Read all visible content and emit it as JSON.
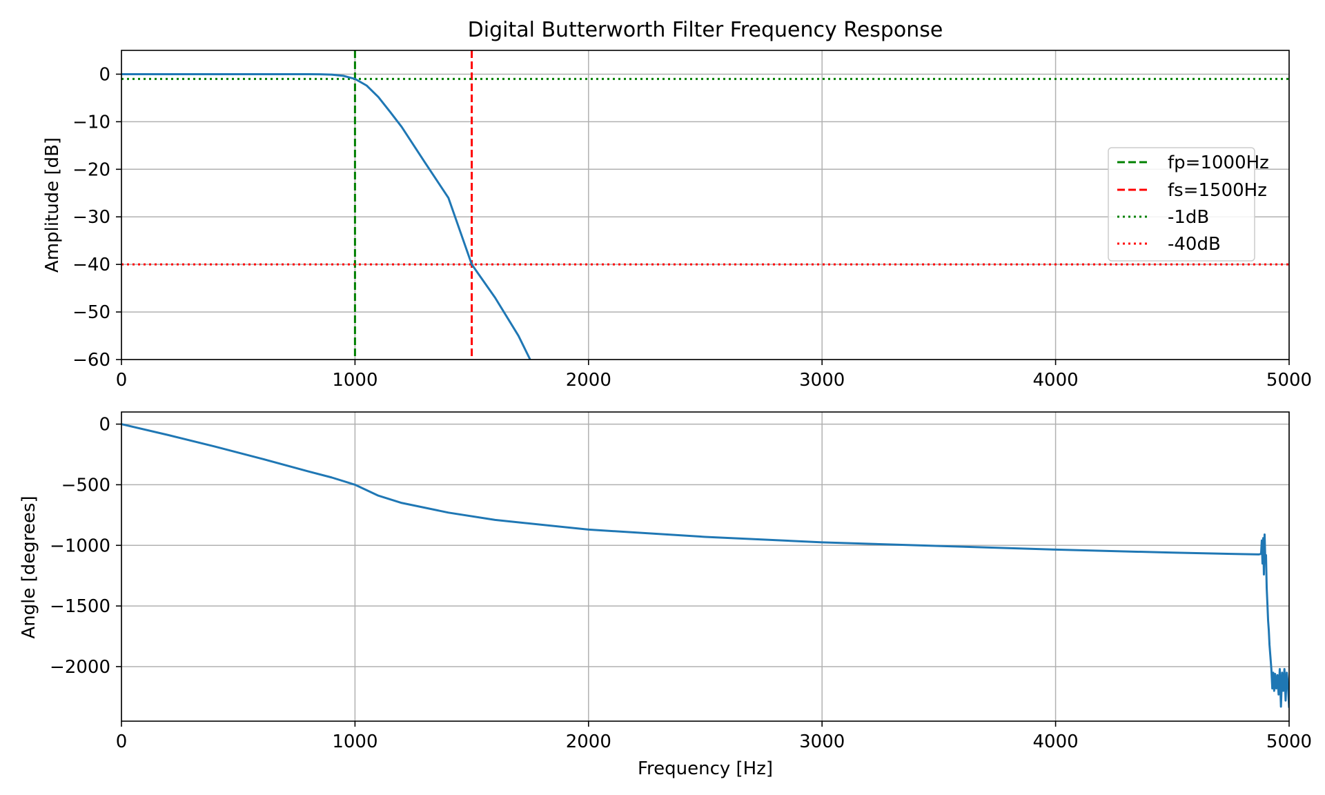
{
  "chart_data": [
    {
      "type": "line",
      "title": "Digital Butterworth Filter Frequency Response",
      "xlabel": "",
      "ylabel": "Amplitude [dB]",
      "xlim": [
        0,
        5000
      ],
      "ylim": [
        -60,
        5
      ],
      "xticks": [
        0,
        1000,
        2000,
        3000,
        4000,
        5000
      ],
      "yticks": [
        0,
        -10,
        -20,
        -30,
        -40,
        -50,
        -60
      ],
      "ytick_labels": [
        "0",
        "−10",
        "−20",
        "−30",
        "−40",
        "−50",
        "−60"
      ],
      "grid": true,
      "legend_position": "center-right",
      "series": [
        {
          "color": "#1f77b4",
          "x": [
            0,
            200,
            400,
            600,
            700,
            800,
            850,
            900,
            950,
            1000,
            1050,
            1100,
            1150,
            1200,
            1300,
            1400,
            1500,
            1600,
            1700,
            1750
          ],
          "y": [
            0,
            0,
            0,
            0,
            0,
            -0.01,
            -0.03,
            -0.1,
            -0.35,
            -1.0,
            -2.4,
            -4.8,
            -7.9,
            -11.1,
            -18.6,
            -26.0,
            -40.0,
            -47.0,
            -55.0,
            -60.0
          ]
        }
      ],
      "reference_lines": [
        {
          "orientation": "vertical",
          "value": 1000,
          "style": "dashed",
          "color": "#008000",
          "label": "fp=1000Hz"
        },
        {
          "orientation": "vertical",
          "value": 1500,
          "style": "dashed",
          "color": "#ff0000",
          "label": "fs=1500Hz"
        },
        {
          "orientation": "horizontal",
          "value": -1,
          "style": "dotted",
          "color": "#008000",
          "label": "-1dB"
        },
        {
          "orientation": "horizontal",
          "value": -40,
          "style": "dotted",
          "color": "#ff0000",
          "label": "-40dB"
        }
      ]
    },
    {
      "type": "line",
      "title": "",
      "xlabel": "Frequency [Hz]",
      "ylabel": "Angle [degrees]",
      "xlim": [
        0,
        5000
      ],
      "ylim": [
        -2450,
        100
      ],
      "xticks": [
        0,
        1000,
        2000,
        3000,
        4000,
        5000
      ],
      "yticks": [
        0,
        -500,
        -1000,
        -1500,
        -2000
      ],
      "ytick_labels": [
        "0",
        "−500",
        "−1000",
        "−1500",
        "−2000"
      ],
      "grid": true,
      "series": [
        {
          "color": "#1f77b4",
          "x": [
            0,
            200,
            400,
            600,
            800,
            900,
            1000,
            1100,
            1200,
            1400,
            1600,
            2000,
            2500,
            3000,
            3500,
            4000,
            4500,
            4870,
            4880,
            4883,
            4886,
            4889,
            4892,
            4895,
            4898,
            4901,
            4904,
            4907,
            4910,
            4913,
            4916,
            4920,
            4924,
            4928,
            4932,
            4936,
            4940,
            4945,
            4950,
            4955,
            4960,
            4965,
            4970,
            4975,
            4980,
            4985,
            4990,
            4995,
            5000
          ],
          "y": [
            0,
            -90,
            -185,
            -285,
            -390,
            -440,
            -500,
            -590,
            -650,
            -730,
            -790,
            -870,
            -930,
            -975,
            -1005,
            -1035,
            -1060,
            -1075,
            -1070,
            -960,
            -1150,
            -940,
            -1240,
            -910,
            -1120,
            -1080,
            -1350,
            -1480,
            -1620,
            -1700,
            -1820,
            -1920,
            -2020,
            -2180,
            -2050,
            -2200,
            -2060,
            -2180,
            -2070,
            -2230,
            -2020,
            -2330,
            -2050,
            -2200,
            -2020,
            -2280,
            -2050,
            -2150,
            -2340
          ]
        }
      ]
    }
  ],
  "legend": {
    "entries": [
      {
        "label": "fp=1000Hz",
        "color": "#008000",
        "style": "dashed"
      },
      {
        "label": "fs=1500Hz",
        "color": "#ff0000",
        "style": "dashed"
      },
      {
        "label": "-1dB",
        "color": "#008000",
        "style": "dotted"
      },
      {
        "label": "-40dB",
        "color": "#ff0000",
        "style": "dotted"
      }
    ]
  },
  "colors": {
    "line": "#1f77b4",
    "grid": "#b0b0b0",
    "passband": "#008000",
    "stopband": "#ff0000"
  }
}
